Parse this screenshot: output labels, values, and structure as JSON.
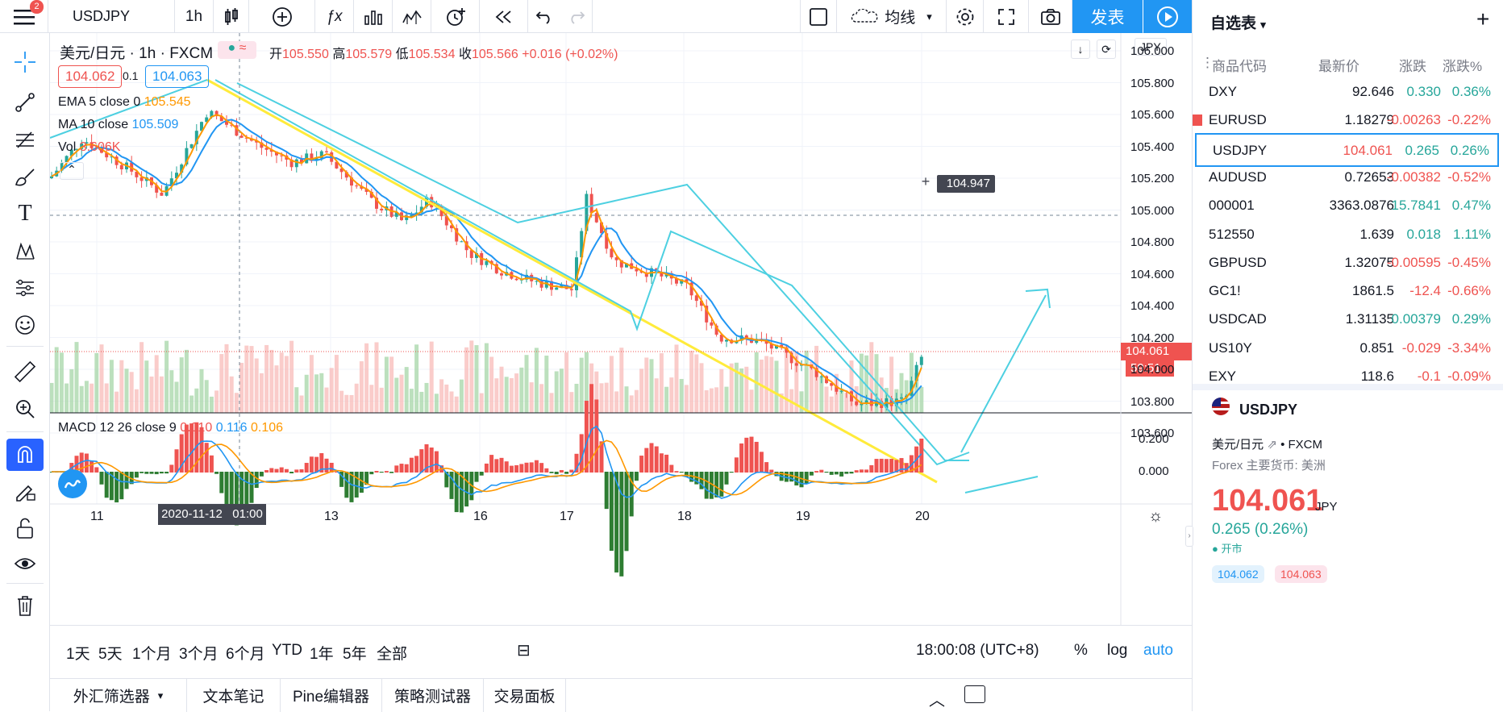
{
  "toolbar": {
    "symbol": "USDJPY",
    "interval": "1h",
    "style": "均线",
    "publish": "发表",
    "badge": "2"
  },
  "legend": {
    "symbol_desc": "美元/日元",
    "interval": "1h",
    "exchange": "FXCM",
    "open_label": "开",
    "open": "105.550",
    "high_label": "高",
    "high": "105.579",
    "low_label": "低",
    "low": "105.534",
    "close_label": "收",
    "close": "105.566",
    "change": "+0.016 (+0.02%)",
    "bid": "104.062",
    "spread": "0.1",
    "ask": "104.063",
    "ema_label": "EMA 5 close 0",
    "ema_val": "105.545",
    "ma_label": "MA 10 close",
    "ma_val": "105.509",
    "vol_label": "Vol",
    "vol_val": "3.606K",
    "macd_label": "MACD 12 26 close 9",
    "macd_1": "0.010",
    "macd_2": "0.116",
    "macd_3": "0.106"
  },
  "price_axis": {
    "currency": "JPY",
    "ticks": [
      "106.000",
      "105.800",
      "105.600",
      "105.400",
      "105.200",
      "105.000",
      "104.800",
      "104.600",
      "104.400",
      "104.200",
      "104.000",
      "103.800",
      "103.600"
    ],
    "crosshair_price": "104.947",
    "current_price": "104.061",
    "countdown": "59:51",
    "macd_ticks": [
      "0.200",
      "0.000"
    ]
  },
  "time_axis": {
    "labels": [
      "11",
      "13",
      "16",
      "17",
      "18",
      "19",
      "20"
    ],
    "crosshair_time": "2020-11-12   01:00"
  },
  "timeframes": [
    "1天",
    "5天",
    "1个月",
    "3个月",
    "6个月",
    "YTD",
    "1年",
    "5年",
    "全部"
  ],
  "clock": "18:00:08 (UTC+8)",
  "scale_opts": [
    "%",
    "log",
    "auto"
  ],
  "bottom_tabs": [
    "外汇筛选器",
    "文本笔记",
    "Pine编辑器",
    "策略测试器",
    "交易面板"
  ],
  "watchlist": {
    "title": "自选表",
    "cols": [
      "商品代码",
      "最新价",
      "涨跌",
      "涨跌%"
    ],
    "rows": [
      {
        "sym": "DXY",
        "last": "92.646",
        "chg": "0.330",
        "pct": "0.36%",
        "dir": "up"
      },
      {
        "sym": "EURUSD",
        "last": "1.18279",
        "chg": "-0.00263",
        "pct": "-0.22%",
        "dir": "dn"
      },
      {
        "sym": "USDJPY",
        "last": "104.061",
        "chg": "0.265",
        "pct": "0.26%",
        "dir": "up"
      },
      {
        "sym": "AUDUSD",
        "last": "0.72653",
        "chg": "-0.00382",
        "pct": "-0.52%",
        "dir": "dn"
      },
      {
        "sym": "000001",
        "last": "3363.0876",
        "chg": "15.7841",
        "pct": "0.47%",
        "dir": "up"
      },
      {
        "sym": "512550",
        "last": "1.639",
        "chg": "0.018",
        "pct": "1.11%",
        "dir": "up"
      },
      {
        "sym": "GBPUSD",
        "last": "1.32075",
        "chg": "-0.00595",
        "pct": "-0.45%",
        "dir": "dn"
      },
      {
        "sym": "GC1!",
        "last": "1861.5",
        "chg": "-12.4",
        "pct": "-0.66%",
        "dir": "dn"
      },
      {
        "sym": "USDCAD",
        "last": "1.31135",
        "chg": "0.00379",
        "pct": "0.29%",
        "dir": "up"
      },
      {
        "sym": "US10Y",
        "last": "0.851",
        "chg": "-0.029",
        "pct": "-3.34%",
        "dir": "dn"
      },
      {
        "sym": "EXY",
        "last": "118.6",
        "chg": "-0.1",
        "pct": "-0.09%",
        "dir": "dn"
      }
    ]
  },
  "detail": {
    "symbol": "USDJPY",
    "desc": "美元/日元",
    "exchange": "FXCM",
    "category": "Forex 主要货币: 美洲",
    "price": "104.061",
    "currency": "JPY",
    "change": "0.265 (0.26%)",
    "status": "开市",
    "bid": "104.062",
    "ask": "104.063"
  },
  "colors": {
    "up": "#26a69a",
    "down": "#ef5350",
    "accent": "#2196f3",
    "ema": "#ff9800",
    "ma": "#2196f3",
    "trend_yellow": "#ffeb3b",
    "channel_cyan": "#4dd0e1"
  }
}
